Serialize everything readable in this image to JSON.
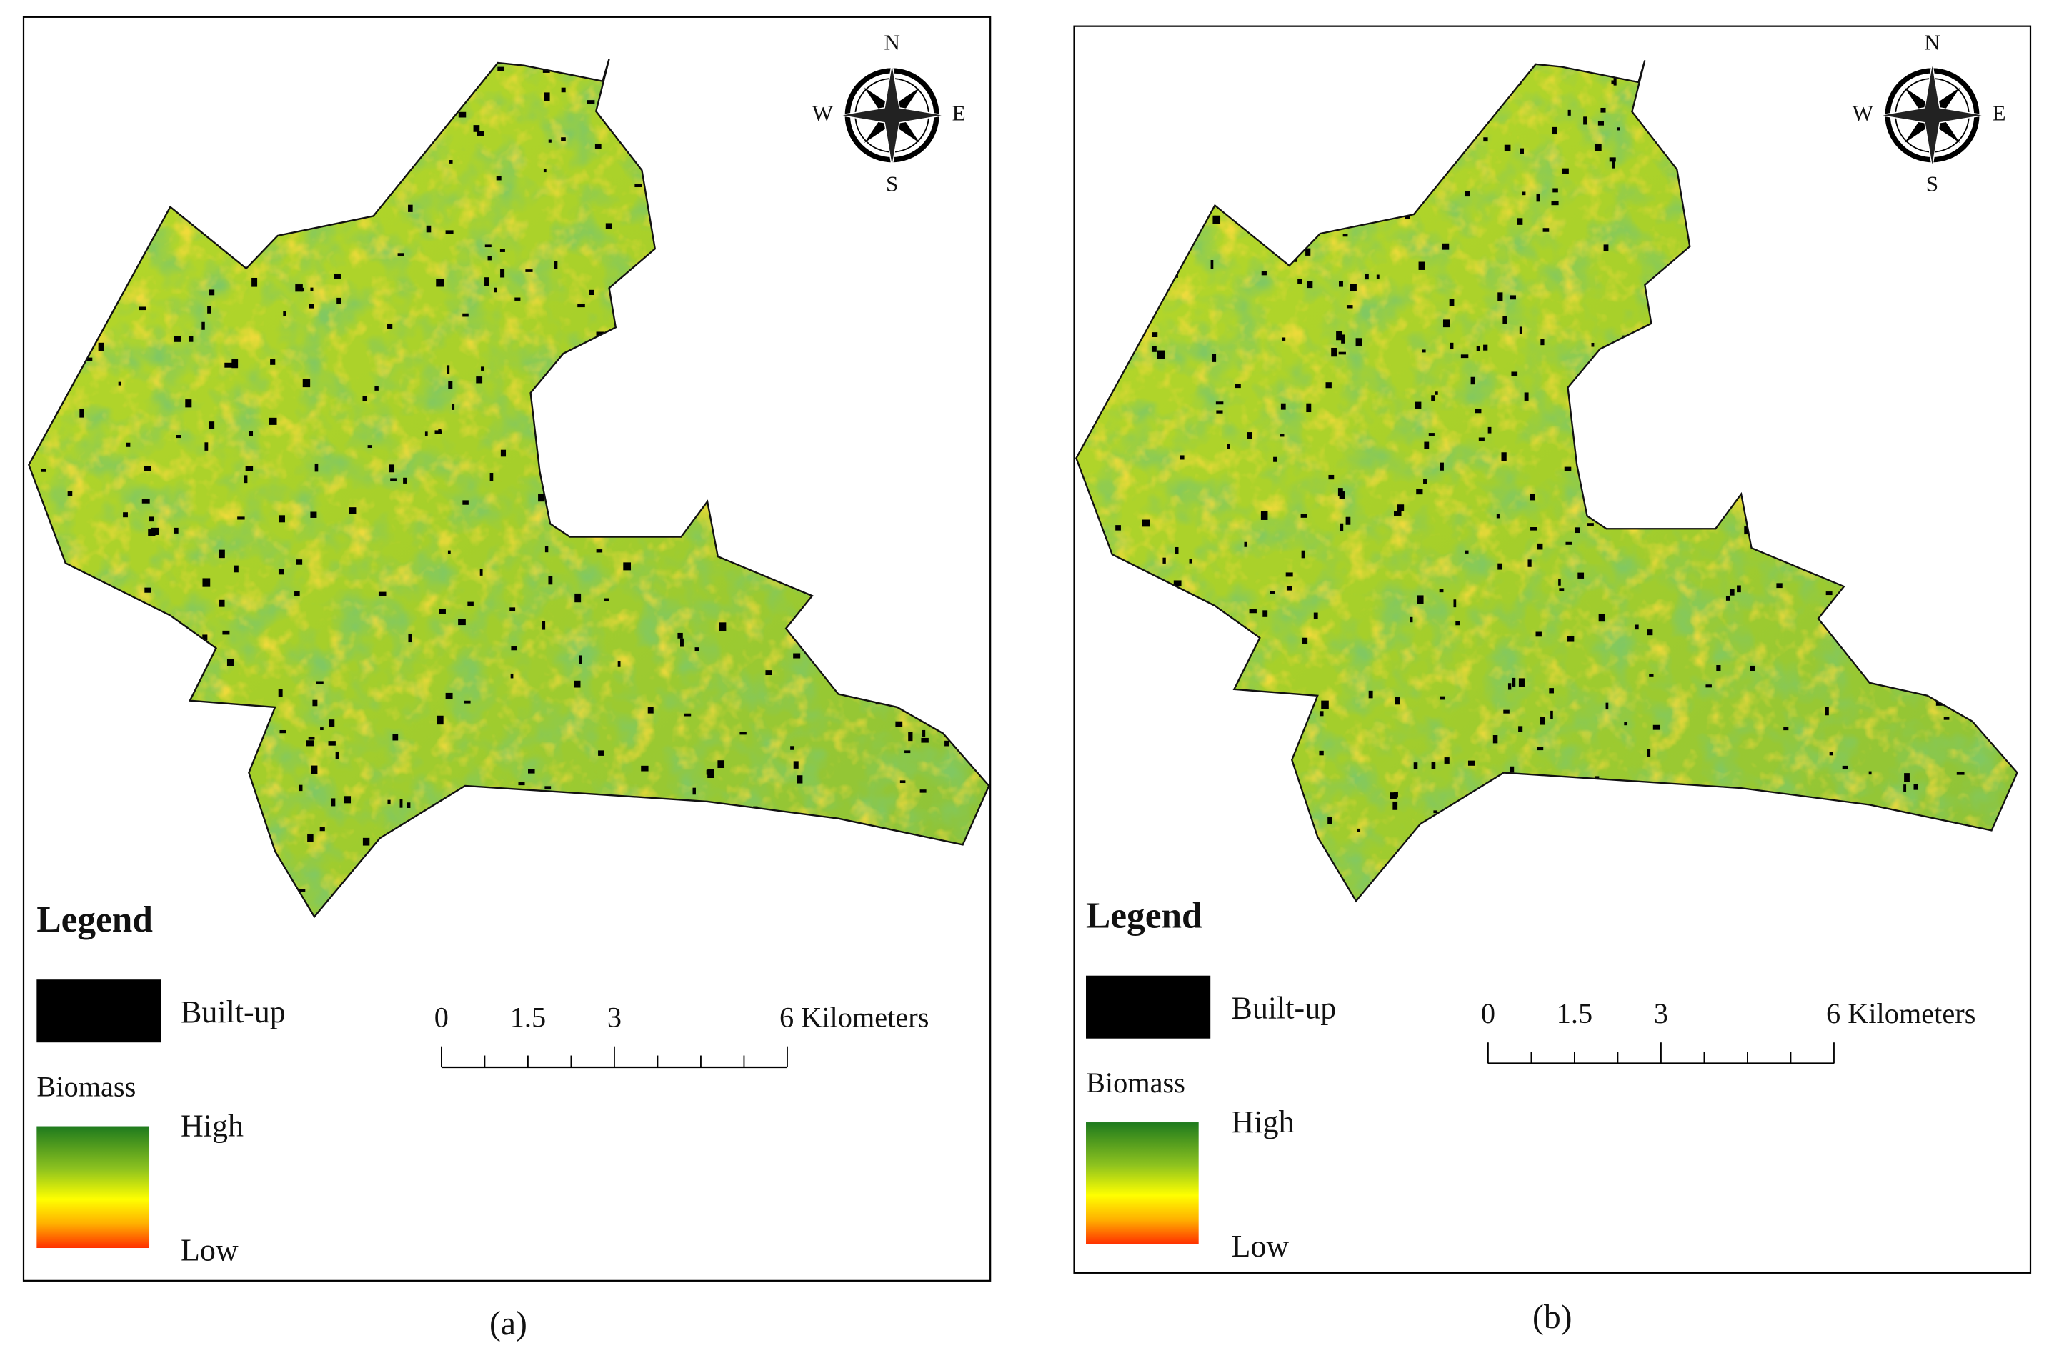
{
  "panels": [
    {
      "caption": "(a)",
      "compass": {
        "n": "N",
        "e": "E",
        "s": "S",
        "w": "W"
      },
      "legend": {
        "title": "Legend",
        "built_up": "Built-up",
        "biomass": "Biomass",
        "high": "High",
        "low": "Low"
      },
      "scale_bar": {
        "labels": [
          "0",
          "1.5",
          "3",
          "6 Kilometers"
        ]
      }
    },
    {
      "caption": "(b)",
      "compass": {
        "n": "N",
        "e": "E",
        "s": "S",
        "w": "W"
      },
      "legend": {
        "title": "Legend",
        "built_up": "Built-up",
        "biomass": "Biomass",
        "high": "High",
        "low": "Low"
      },
      "scale_bar": {
        "labels": [
          "0",
          "1.5",
          "3",
          "6 Kilometers"
        ]
      }
    }
  ]
}
